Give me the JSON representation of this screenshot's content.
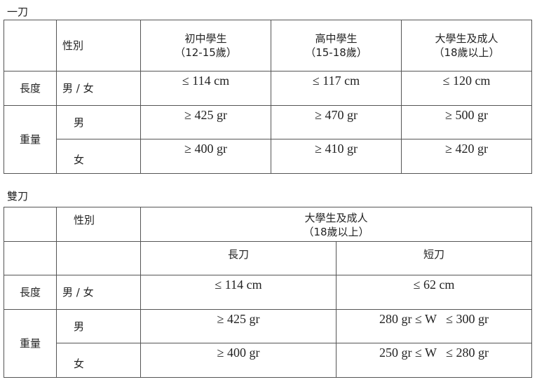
{
  "single": {
    "title": "一刀",
    "header": {
      "gender": "性別",
      "cols": [
        {
          "line1": "初中學生",
          "line2": "（12-15歲）"
        },
        {
          "line1": "高中學生",
          "line2": "（15-18歲）"
        },
        {
          "line1": "大學生及成人",
          "line2": "（18歲以上）"
        }
      ]
    },
    "length": {
      "label": "長度",
      "gender": "男 / 女",
      "values": [
        "≤ 114 cm",
        "≤ 117 cm",
        "≤ 120 cm"
      ]
    },
    "weight": {
      "label": "重量",
      "male": {
        "gender": "男",
        "values": [
          "≥ 425 gr",
          "≥ 470 gr",
          "≥ 500 gr"
        ]
      },
      "female": {
        "gender": "女",
        "values": [
          "≥ 400 gr",
          "≥ 410 gr",
          "≥ 420 gr"
        ]
      }
    }
  },
  "double": {
    "title": "雙刀",
    "header": {
      "gender": "性別",
      "group_line1": "大學生及成人",
      "group_line2": "（18歲以上）",
      "long": "長刀",
      "short": "短刀"
    },
    "length": {
      "label": "長度",
      "gender": "男 / 女",
      "values": [
        "≤ 114 cm",
        "≤ 62 cm"
      ]
    },
    "weight": {
      "label": "重量",
      "male": {
        "gender": "男",
        "values": [
          "≥ 425 gr",
          "280 gr ≤ W   ≤ 300 gr"
        ]
      },
      "female": {
        "gender": "女",
        "values": [
          "≥ 400 gr",
          "250 gr ≤ W   ≤ 280 gr"
        ]
      }
    }
  }
}
